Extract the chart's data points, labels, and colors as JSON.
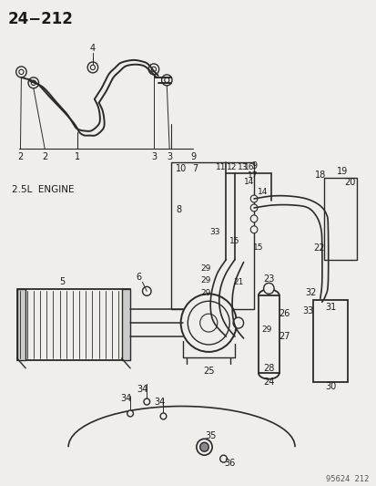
{
  "title": "24−212",
  "subtitle": "2.5L ENGINE",
  "watermark": "95624  212",
  "background_color": "#f0eeeb",
  "line_color": "#2a2a2a",
  "text_color": "#1a1a1a",
  "fig_width": 4.14,
  "fig_height": 5.33,
  "dpi": 100
}
